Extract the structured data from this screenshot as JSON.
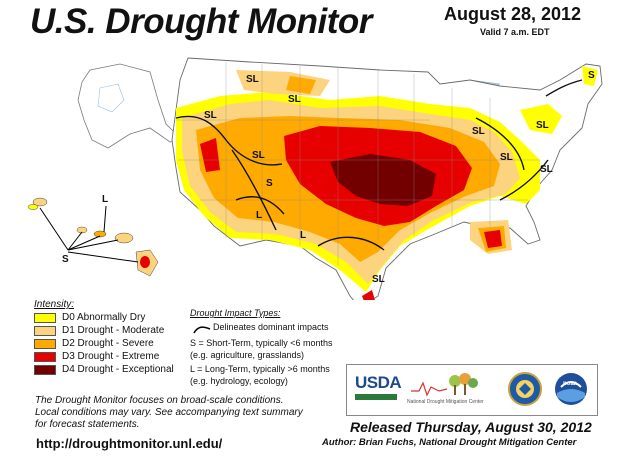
{
  "header": {
    "title": "U.S. Drought Monitor",
    "date": "August 28, 2012",
    "valid": "Valid 7 a.m. EDT"
  },
  "map_labels": {
    "sl": "SL",
    "s": "S",
    "l": "L"
  },
  "legend": {
    "title": "Intensity:",
    "items": [
      {
        "label": "D0 Abnormally Dry",
        "color": "#FFFF00"
      },
      {
        "label": "D1 Drought - Moderate",
        "color": "#FCD37F"
      },
      {
        "label": "D2 Drought - Severe",
        "color": "#FFAA00"
      },
      {
        "label": "D3 Drought - Extreme",
        "color": "#E60000"
      },
      {
        "label": "D4 Drought - Exceptional",
        "color": "#730000"
      }
    ]
  },
  "impacts": {
    "title": "Drought Impact Types:",
    "line_label": "Delineates dominant impacts",
    "short_term": "S = Short-Term, typically <6 months",
    "short_term_eg": "(e.g. agriculture, grasslands)",
    "long_term": "L = Long-Term, typically >6 months",
    "long_term_eg": "(e.g. hydrology, ecology)"
  },
  "note": {
    "line1": "The Drought Monitor focuses on broad-scale conditions.",
    "line2": "Local conditions may vary. See accompanying text summary",
    "line3": "for forecast statements."
  },
  "footer": {
    "url": "http://droughtmonitor.unl.edu/",
    "released": "Released Thursday, August 30, 2012",
    "author": "Author: Brian Fuchs, National Drought Mitigation Center"
  },
  "logos": {
    "usda": "USDA",
    "ndmc": "National Drought Mitigation Center",
    "noaa": "noaa"
  }
}
